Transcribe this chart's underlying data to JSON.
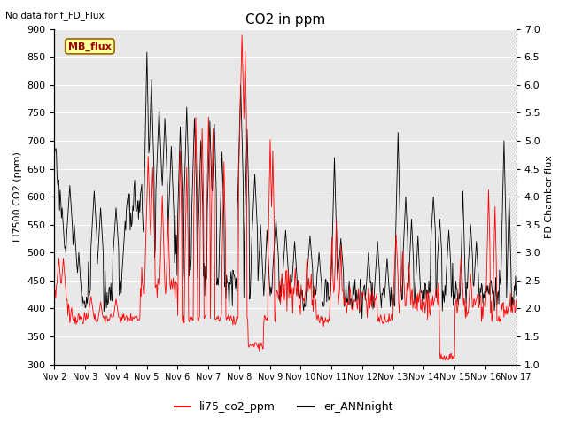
{
  "title": "CO2 in ppm",
  "ylabel_left": "LI7500 CO2 (ppm)",
  "ylabel_right": "FD Chamber flux",
  "ylim_left": [
    300,
    900
  ],
  "ylim_right": [
    1.0,
    7.0
  ],
  "yticks_left": [
    300,
    350,
    400,
    450,
    500,
    550,
    600,
    650,
    700,
    750,
    800,
    850,
    900
  ],
  "yticks_right": [
    1.0,
    1.5,
    2.0,
    2.5,
    3.0,
    3.5,
    4.0,
    4.5,
    5.0,
    5.5,
    6.0,
    6.5,
    7.0
  ],
  "xtick_labels": [
    "Nov 2",
    "Nov 3",
    "Nov 4",
    "Nov 5",
    "Nov 6",
    "Nov 7",
    "Nov 8",
    "Nov 9",
    "Nov 10",
    "Nov 11",
    "Nov 12",
    "Nov 13",
    "Nov 14",
    "Nov 15",
    "Nov 16",
    "Nov 17"
  ],
  "nodata_text": "No data for f_FD_Flux",
  "mb_flux_label": "MB_flux",
  "legend_red": "li75_co2_ppm",
  "legend_black": "er_ANNnight",
  "bg_color": "#e8e8e8",
  "line_red": "#ff0000",
  "line_black": "#000000",
  "mb_flux_bg": "#ffff99",
  "mb_flux_border": "#800000"
}
